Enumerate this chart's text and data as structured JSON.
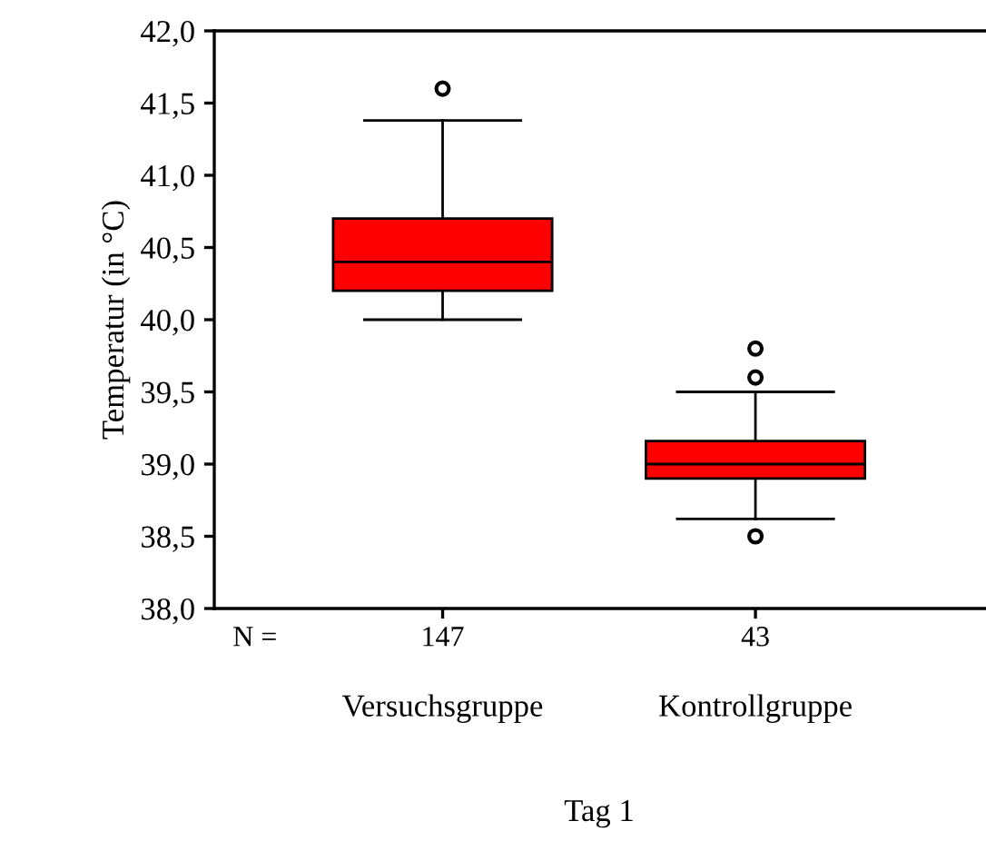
{
  "chart_data": {
    "type": "box",
    "xlabel": "Tag 1",
    "ylabel": "Temperatur (in °C)",
    "categories": [
      "Versuchsgruppe",
      "Kontrollgruppe"
    ],
    "boxes": [
      {
        "low": 40.0,
        "q1": 40.2,
        "median": 40.4,
        "q3": 40.7,
        "high": 41.38,
        "outliers": [
          41.6
        ]
      },
      {
        "low": 38.62,
        "q1": 38.9,
        "median": 39.0,
        "q3": 39.16,
        "high": 39.5,
        "outliers": [
          39.6,
          39.8,
          38.5
        ]
      }
    ],
    "color": "#ff0000",
    "ylim": [
      38.0,
      42.0
    ],
    "yticks": [
      {
        "value": 38.0,
        "label": "38,0"
      },
      {
        "value": 38.5,
        "label": "38,5"
      },
      {
        "value": 39.0,
        "label": "39,0"
      },
      {
        "value": 39.5,
        "label": "39,5"
      },
      {
        "value": 40.0,
        "label": "40,0"
      },
      {
        "value": 40.5,
        "label": "40,5"
      },
      {
        "value": 41.0,
        "label": "41,0"
      },
      {
        "value": 41.5,
        "label": "41,5"
      },
      {
        "value": 42.0,
        "label": "42,0"
      }
    ],
    "annotations": [
      "N =",
      "147",
      "43"
    ],
    "grid": false,
    "legend": false
  }
}
